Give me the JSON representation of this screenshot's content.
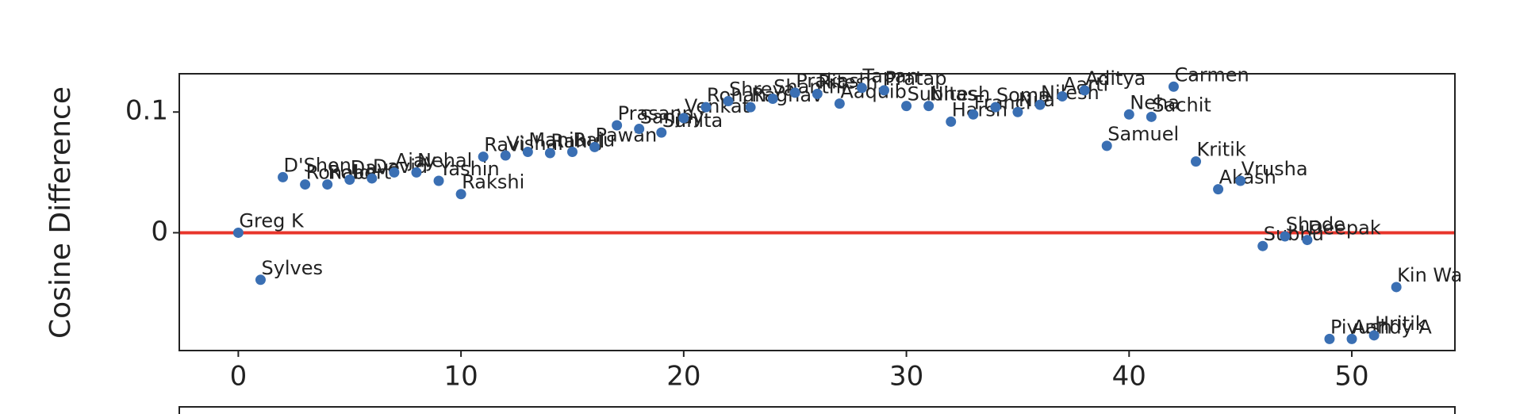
{
  "chart_data": {
    "type": "scatter",
    "y_label": "Cosine Difference",
    "color": "#3a6fb3",
    "x": [
      0,
      1,
      2,
      3,
      4,
      5,
      6,
      7,
      8,
      9,
      10,
      11,
      12,
      13,
      14,
      15,
      16,
      17,
      18,
      19,
      20,
      21,
      22,
      23,
      24,
      25,
      26,
      27,
      28,
      29,
      30,
      31,
      32,
      33,
      34,
      35,
      36,
      37,
      38,
      39,
      40,
      41,
      42,
      43,
      44,
      45,
      46,
      47,
      48,
      49,
      50,
      51,
      52
    ],
    "values": [
      0.0,
      -0.039,
      0.046,
      0.04,
      0.04,
      0.044,
      0.045,
      0.05,
      0.05,
      0.043,
      0.032,
      0.063,
      0.064,
      0.067,
      0.066,
      0.067,
      0.071,
      0.089,
      0.086,
      0.083,
      0.095,
      0.104,
      0.109,
      0.104,
      0.111,
      0.116,
      0.115,
      0.107,
      0.12,
      0.118,
      0.105,
      0.105,
      0.092,
      0.098,
      0.104,
      0.1,
      0.106,
      0.113,
      0.118,
      0.072,
      0.098,
      0.096,
      0.121,
      0.059,
      0.036,
      0.043,
      -0.011,
      -0.003,
      -0.006,
      -0.088,
      -0.088,
      -0.085,
      -0.045
    ],
    "point_labels": [
      "Greg K",
      "Sylves",
      "D'Shon",
      "Ronald",
      "Robert",
      "Dave",
      "David",
      "Ajay",
      "Nehal",
      "Yashin",
      "Rakshi",
      "Ravi",
      "Vishal",
      "Manju",
      "Rahul",
      "Raju",
      "Pawan",
      "Prasann",
      "Sanjay",
      "Sunita",
      "Venkat",
      "Rohan",
      "Shreya",
      "Raghav",
      "Shanthi",
      "Prakash",
      "Ritesh",
      "Aaquib",
      "Tapan",
      "Pratap",
      "Subhas",
      "Nitesh",
      "Harsh",
      "Franci",
      "Soma",
      "Nila",
      "Nilesh",
      "Aarti",
      "Aditya",
      "Samuel",
      "Neha",
      "Sachit",
      "Carmen",
      "Kritik",
      "Akash",
      "Vrusha",
      "Subbu",
      "Shade",
      "Deepak",
      "Piyush",
      "Aandy A",
      "Hritik",
      "Kin Wa"
    ],
    "xlim": [
      -2.65,
      54.63
    ],
    "ylim": [
      -0.0976,
      0.1317
    ],
    "xticks": [
      0,
      10,
      20,
      30,
      40,
      50
    ],
    "yticks": [
      0.0,
      0.1
    ],
    "hline": {
      "y": 0,
      "color": "#e8352b"
    }
  }
}
